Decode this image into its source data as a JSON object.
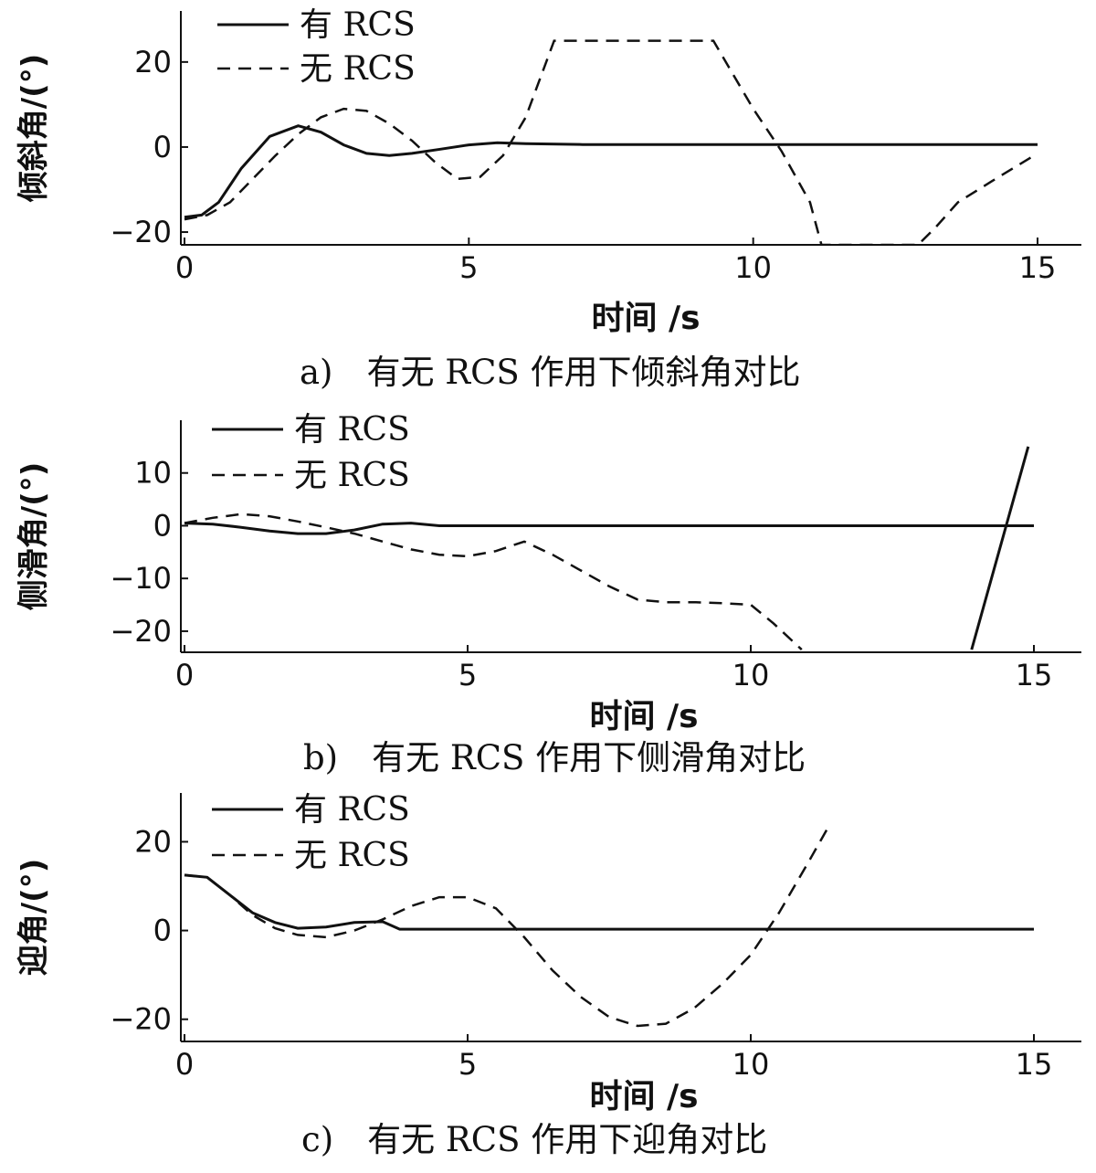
{
  "chart_data": [
    {
      "type": "line",
      "caption": "a)　有无 RCS 作用下倾斜角对比",
      "xlabel": "时间 /s",
      "ylabel": "倾斜角/(°)",
      "xlim": [
        0,
        15.5
      ],
      "ylim": [
        -23,
        32
      ],
      "xticks": [
        0,
        5,
        10,
        15
      ],
      "yticks": [
        -20,
        0,
        20
      ],
      "legend": "top-left",
      "series": [
        {
          "name": "有 RCS",
          "style": "solid",
          "x": [
            0,
            0.3,
            0.6,
            1.0,
            1.5,
            2.0,
            2.4,
            2.8,
            3.2,
            3.6,
            4.0,
            4.5,
            5.0,
            5.5,
            6.0,
            7.0,
            8.0,
            10.0,
            12.0,
            15.0
          ],
          "y": [
            -16.5,
            -16,
            -13,
            -5,
            2.5,
            5,
            3.5,
            0.5,
            -1.5,
            -2,
            -1.5,
            -0.5,
            0.5,
            1,
            0.8,
            0.6,
            0.6,
            0.6,
            0.6,
            0.6
          ]
        },
        {
          "name": "无 RCS",
          "style": "dashed",
          "x": [
            0,
            0.4,
            0.8,
            1.2,
            1.6,
            2.0,
            2.4,
            2.8,
            3.2,
            3.6,
            4.0,
            4.4,
            4.8,
            5.2,
            5.6,
            6.0,
            6.5,
            9.3,
            10.0,
            10.5,
            11.0,
            11.2,
            12.9,
            13.2,
            13.6,
            14.2,
            15.0
          ],
          "y": [
            -17,
            -16,
            -13,
            -7.5,
            -2,
            3,
            7,
            9,
            8.5,
            5.5,
            1.5,
            -3.5,
            -7.5,
            -7,
            -2,
            7,
            25,
            25,
            9,
            -1,
            -13,
            -23,
            -23,
            -19,
            -13,
            -8,
            -1.5
          ]
        }
      ]
    },
    {
      "type": "line",
      "caption": "b)　有无 RCS 作用下侧滑角对比",
      "xlabel": "时间 /s",
      "ylabel": "侧滑角/(°)",
      "xlim": [
        0,
        15.5
      ],
      "ylim": [
        -24,
        20
      ],
      "xticks": [
        0,
        5,
        10,
        15
      ],
      "yticks": [
        -20,
        -10,
        0,
        10
      ],
      "legend": "top-left",
      "series": [
        {
          "name": "有 RCS",
          "style": "solid",
          "x": [
            0,
            0.5,
            1.0,
            1.5,
            2.0,
            2.5,
            3.0,
            3.5,
            4.0,
            4.5,
            6.0,
            8.0,
            10.0,
            12.0,
            15.0
          ],
          "y": [
            0.5,
            0.3,
            -0.3,
            -1,
            -1.5,
            -1.5,
            -0.8,
            0.3,
            0.5,
            0,
            0,
            0,
            0,
            0,
            0
          ],
          "x2": [
            13.9,
            14.9
          ],
          "y2": [
            -23.5,
            15
          ]
        },
        {
          "name": "无 RCS",
          "style": "dashed",
          "x": [
            0,
            0.5,
            1.0,
            1.5,
            2.0,
            2.5,
            3.0,
            3.5,
            4.0,
            4.5,
            5.0,
            5.5,
            6.0,
            6.5,
            7.0,
            7.5,
            8.0,
            8.5,
            9.0,
            9.5,
            10.0,
            10.4,
            10.9
          ],
          "y": [
            0.5,
            1.5,
            2.2,
            1.8,
            0.8,
            -0.3,
            -1.5,
            -3,
            -4.5,
            -5.5,
            -5.8,
            -4.8,
            -3,
            -5.5,
            -8.5,
            -11.5,
            -14,
            -14.5,
            -14.5,
            -14.7,
            -15,
            -18.5,
            -23.5
          ]
        }
      ]
    },
    {
      "type": "line",
      "caption": "c)　有无 RCS 作用下迎角对比",
      "xlabel": "时间 /s",
      "ylabel": "迎角/(°)",
      "xlim": [
        0,
        15.5
      ],
      "ylim": [
        -25,
        31
      ],
      "xticks": [
        0,
        5,
        10,
        15
      ],
      "yticks": [
        -20,
        0,
        20
      ],
      "legend": "top-left",
      "series": [
        {
          "name": "有 RCS",
          "style": "solid",
          "x": [
            0,
            0.4,
            0.8,
            1.2,
            1.6,
            2.0,
            2.5,
            3.0,
            3.5,
            3.8,
            4.5,
            6.0,
            8.0,
            10.0,
            15.0
          ],
          "y": [
            12.5,
            12,
            8,
            4,
            1.8,
            0.5,
            0.8,
            1.8,
            2,
            0.3,
            0.3,
            0.3,
            0.3,
            0.3,
            0.3
          ]
        },
        {
          "name": "无 RCS",
          "style": "dashed",
          "x": [
            0,
            0.4,
            0.8,
            1.2,
            1.6,
            2.0,
            2.5,
            3.0,
            3.5,
            4.0,
            4.5,
            5.0,
            5.5,
            6.0,
            6.5,
            7.0,
            7.5,
            8.0,
            8.5,
            9.0,
            9.5,
            10.0,
            10.5,
            11.0,
            11.4
          ],
          "y": [
            12.5,
            12,
            8,
            3.5,
            0.5,
            -1,
            -1.5,
            0,
            2.5,
            5.5,
            7.5,
            7.5,
            5,
            -1.5,
            -9,
            -15,
            -19.5,
            -21.5,
            -21,
            -17.5,
            -12,
            -5.5,
            4,
            15,
            24
          ]
        }
      ]
    }
  ]
}
